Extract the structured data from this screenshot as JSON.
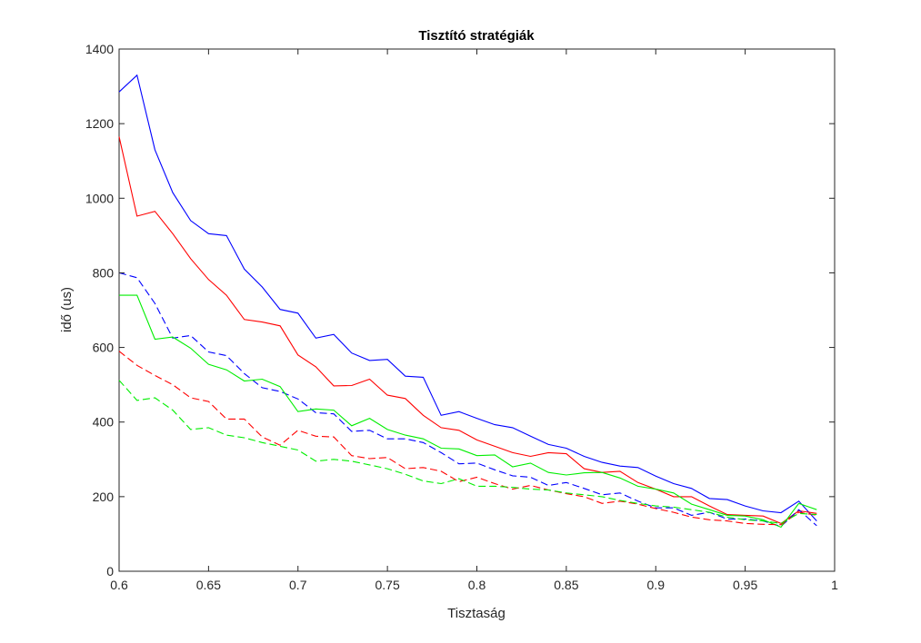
{
  "chart_data": {
    "type": "line",
    "title": "Tisztító stratégiák",
    "xlabel": "Tisztaság",
    "ylabel": "idő (us)",
    "xlim": [
      0.6,
      1
    ],
    "ylim": [
      0,
      1400
    ],
    "xticks": [
      "0.6",
      "0.65",
      "0.7",
      "0.75",
      "0.8",
      "0.85",
      "0.9",
      "0.95",
      "1"
    ],
    "yticks": [
      "0",
      "200",
      "400",
      "600",
      "800",
      "1000",
      "1200",
      "1400"
    ],
    "grid": false,
    "legend": null,
    "x": [
      0.6,
      0.61,
      0.62,
      0.63,
      0.64,
      0.65,
      0.66,
      0.67,
      0.68,
      0.69,
      0.7,
      0.71,
      0.72,
      0.73,
      0.74,
      0.75,
      0.76,
      0.77,
      0.78,
      0.79,
      0.8,
      0.81,
      0.82,
      0.83,
      0.84,
      0.85,
      0.86,
      0.87,
      0.88,
      0.89,
      0.9,
      0.91,
      0.92,
      0.93,
      0.94,
      0.95,
      0.96,
      0.97,
      0.98,
      0.99
    ],
    "series": [
      {
        "color": "#0000ff",
        "style": "solid",
        "values": [
          1285,
          1330,
          1130,
          1015,
          940,
          905,
          900,
          810,
          762,
          702,
          692,
          625,
          635,
          585,
          565,
          568,
          523,
          520,
          418,
          428,
          410,
          393,
          385,
          362,
          340,
          330,
          308,
          292,
          282,
          278,
          255,
          235,
          222,
          195,
          192,
          175,
          162,
          157,
          188,
          135
        ]
      },
      {
        "color": "#ff0000",
        "style": "solid",
        "values": [
          1165,
          952,
          965,
          905,
          838,
          782,
          740,
          675,
          668,
          658,
          580,
          548,
          497,
          498,
          515,
          472,
          463,
          418,
          385,
          378,
          352,
          335,
          318,
          308,
          318,
          315,
          275,
          265,
          268,
          238,
          220,
          200,
          200,
          175,
          152,
          150,
          148,
          128,
          162,
          155
        ]
      },
      {
        "color": "#0000ff",
        "style": "dashed",
        "values": [
          800,
          787,
          718,
          625,
          632,
          588,
          578,
          530,
          492,
          482,
          462,
          425,
          422,
          375,
          378,
          355,
          355,
          345,
          318,
          288,
          290,
          272,
          256,
          252,
          230,
          238,
          222,
          205,
          210,
          188,
          170,
          170,
          150,
          158,
          140,
          140,
          135,
          120,
          165,
          122
        ]
      },
      {
        "color": "#00ee00",
        "style": "solid",
        "values": [
          740,
          740,
          622,
          628,
          598,
          555,
          540,
          510,
          515,
          495,
          428,
          435,
          432,
          390,
          410,
          380,
          365,
          355,
          330,
          328,
          310,
          312,
          280,
          290,
          265,
          258,
          264,
          265,
          250,
          228,
          220,
          210,
          180,
          165,
          150,
          148,
          138,
          118,
          182,
          165
        ]
      },
      {
        "color": "#ff0000",
        "style": "dashed",
        "values": [
          590,
          552,
          525,
          500,
          465,
          455,
          408,
          408,
          360,
          338,
          378,
          362,
          360,
          310,
          302,
          305,
          275,
          278,
          268,
          240,
          252,
          235,
          220,
          230,
          218,
          208,
          200,
          182,
          188,
          180,
          168,
          158,
          145,
          138,
          135,
          128,
          126,
          125,
          158,
          150
        ]
      },
      {
        "color": "#00ee00",
        "style": "dashed",
        "values": [
          512,
          458,
          465,
          432,
          380,
          385,
          365,
          358,
          345,
          335,
          325,
          295,
          300,
          295,
          285,
          275,
          260,
          242,
          235,
          248,
          228,
          228,
          225,
          220,
          218,
          210,
          205,
          200,
          190,
          182,
          175,
          172,
          165,
          158,
          145,
          138,
          135,
          128,
          155,
          152
        ]
      }
    ]
  }
}
